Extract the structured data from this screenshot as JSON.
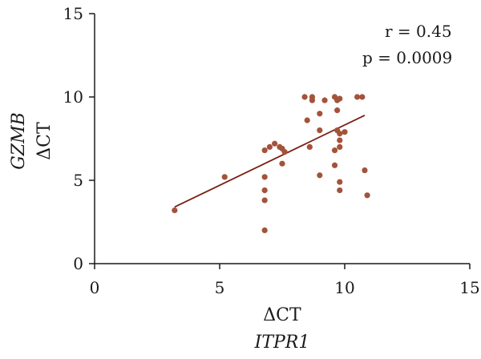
{
  "chart_data": {
    "type": "scatter",
    "title": "",
    "xlabel": {
      "line1": "ΔCT",
      "line2": "ITPR1"
    },
    "ylabel": {
      "line1": "GZMB",
      "line2": "ΔCT"
    },
    "xlim": [
      0,
      15
    ],
    "ylim": [
      0,
      15
    ],
    "xticks": [
      "0",
      "5",
      "10",
      "15"
    ],
    "yticks": [
      "0",
      "5",
      "10",
      "15"
    ],
    "grid": false,
    "marker_color": "#a3533a",
    "line_color": "#7a1e12",
    "axis_color": "#1a1a1a",
    "annotations": {
      "r": "r = 0.45",
      "p": "p = 0.0009"
    },
    "trendline": {
      "x": [
        3.2,
        10.8
      ],
      "y": [
        3.4,
        8.9
      ]
    },
    "points": [
      {
        "x": 3.2,
        "y": 3.2
      },
      {
        "x": 5.2,
        "y": 5.2
      },
      {
        "x": 6.8,
        "y": 6.8
      },
      {
        "x": 6.8,
        "y": 5.2
      },
      {
        "x": 6.8,
        "y": 4.4
      },
      {
        "x": 6.8,
        "y": 3.8
      },
      {
        "x": 6.8,
        "y": 2.0
      },
      {
        "x": 7.0,
        "y": 7.0
      },
      {
        "x": 7.2,
        "y": 7.2
      },
      {
        "x": 7.4,
        "y": 7.0
      },
      {
        "x": 7.5,
        "y": 6.9
      },
      {
        "x": 7.5,
        "y": 6.0
      },
      {
        "x": 7.6,
        "y": 6.7
      },
      {
        "x": 8.4,
        "y": 10.0
      },
      {
        "x": 8.5,
        "y": 8.6
      },
      {
        "x": 8.6,
        "y": 7.0
      },
      {
        "x": 8.7,
        "y": 10.0
      },
      {
        "x": 8.7,
        "y": 9.8
      },
      {
        "x": 9.0,
        "y": 9.0
      },
      {
        "x": 9.0,
        "y": 8.0
      },
      {
        "x": 9.0,
        "y": 5.3
      },
      {
        "x": 9.2,
        "y": 9.8
      },
      {
        "x": 9.6,
        "y": 10.0
      },
      {
        "x": 9.6,
        "y": 6.8
      },
      {
        "x": 9.6,
        "y": 5.9
      },
      {
        "x": 9.7,
        "y": 9.8
      },
      {
        "x": 9.7,
        "y": 9.2
      },
      {
        "x": 9.7,
        "y": 8.0
      },
      {
        "x": 9.8,
        "y": 9.9
      },
      {
        "x": 9.8,
        "y": 7.8
      },
      {
        "x": 9.8,
        "y": 7.4
      },
      {
        "x": 9.8,
        "y": 7.0
      },
      {
        "x": 9.8,
        "y": 4.9
      },
      {
        "x": 9.8,
        "y": 4.4
      },
      {
        "x": 10.0,
        "y": 7.9
      },
      {
        "x": 10.5,
        "y": 10.0
      },
      {
        "x": 10.7,
        "y": 10.0
      },
      {
        "x": 10.8,
        "y": 5.6
      },
      {
        "x": 10.9,
        "y": 4.1
      }
    ]
  }
}
